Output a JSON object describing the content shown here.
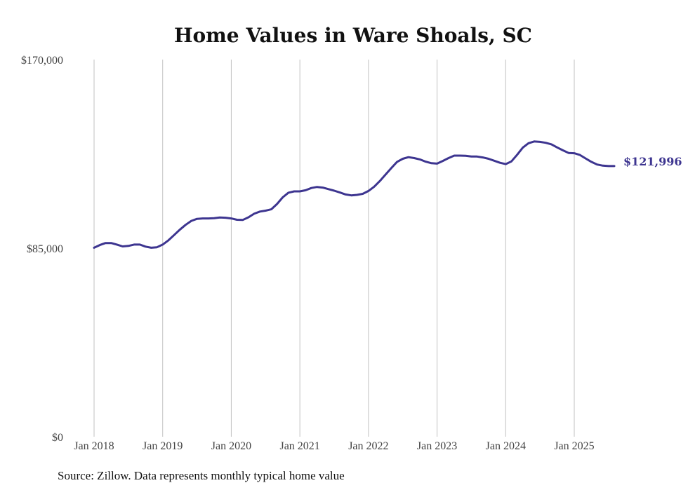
{
  "chart_data": {
    "type": "line",
    "title": "Home Values in Ware Shoals, SC",
    "xlabel": "",
    "ylabel": "",
    "ylim": [
      0,
      170000
    ],
    "y_ticks": [
      {
        "value": 0,
        "label": "$0"
      },
      {
        "value": 85000,
        "label": "$85,000"
      },
      {
        "value": 170000,
        "label": "$170,000"
      }
    ],
    "x_ticks": [
      {
        "value": 2018.0,
        "label": "Jan 2018"
      },
      {
        "value": 2019.0,
        "label": "Jan 2019"
      },
      {
        "value": 2020.0,
        "label": "Jan 2020"
      },
      {
        "value": 2021.0,
        "label": "Jan 2021"
      },
      {
        "value": 2022.0,
        "label": "Jan 2022"
      },
      {
        "value": 2023.0,
        "label": "Jan 2023"
      },
      {
        "value": 2024.0,
        "label": "Jan 2024"
      },
      {
        "value": 2025.0,
        "label": "Jan 2025"
      }
    ],
    "grid": {
      "vertical": true,
      "horizontal": false
    },
    "line_color": "#3d3590",
    "end_label": "$121,996",
    "series": [
      {
        "x": [
          2018.0,
          2018.083,
          2018.167,
          2018.25,
          2018.333,
          2018.417,
          2018.5,
          2018.583,
          2018.667,
          2018.75,
          2018.833,
          2018.917,
          2019.0,
          2019.083,
          2019.167,
          2019.25,
          2019.333,
          2019.417,
          2019.5,
          2019.583,
          2019.667,
          2019.75,
          2019.833,
          2019.917,
          2020.0,
          2020.083,
          2020.167,
          2020.25,
          2020.333,
          2020.417,
          2020.5,
          2020.583,
          2020.667,
          2020.75,
          2020.833,
          2020.917,
          2021.0,
          2021.083,
          2021.167,
          2021.25,
          2021.333,
          2021.417,
          2021.5,
          2021.583,
          2021.667,
          2021.75,
          2021.833,
          2021.917,
          2022.0,
          2022.083,
          2022.167,
          2022.25,
          2022.333,
          2022.417,
          2022.5,
          2022.583,
          2022.667,
          2022.75,
          2022.833,
          2022.917,
          2023.0,
          2023.083,
          2023.167,
          2023.25,
          2023.333,
          2023.417,
          2023.5,
          2023.583,
          2023.667,
          2023.75,
          2023.833,
          2023.917,
          2024.0,
          2024.083,
          2024.167,
          2024.25,
          2024.333,
          2024.417,
          2024.5,
          2024.583,
          2024.667,
          2024.75,
          2024.833,
          2024.917,
          2025.0,
          2025.083,
          2025.167,
          2025.25,
          2025.333,
          2025.417,
          2025.5,
          2025.583
        ],
        "values": [
          85200,
          86400,
          87300,
          87300,
          86600,
          85800,
          86000,
          86600,
          86600,
          85700,
          85200,
          85400,
          86600,
          88500,
          90900,
          93300,
          95500,
          97300,
          98200,
          98400,
          98400,
          98500,
          98800,
          98700,
          98400,
          97800,
          97700,
          98900,
          100500,
          101500,
          101900,
          102500,
          104900,
          107900,
          110000,
          110600,
          110600,
          111100,
          112100,
          112600,
          112300,
          111600,
          110900,
          110100,
          109200,
          108800,
          109000,
          109500,
          110800,
          112700,
          115300,
          118200,
          121100,
          123900,
          125300,
          126000,
          125600,
          125000,
          124000,
          123300,
          123100,
          124300,
          125600,
          126700,
          126700,
          126600,
          126300,
          126300,
          125900,
          125300,
          124400,
          123500,
          122900,
          124100,
          127100,
          130300,
          132300,
          133100,
          132900,
          132500,
          131800,
          130400,
          129100,
          127900,
          127800,
          127000,
          125400,
          123900,
          122700,
          122200,
          122000,
          121996
        ]
      }
    ]
  },
  "footer": {
    "source": "Source: Zillow. Data represents monthly typical home value"
  }
}
